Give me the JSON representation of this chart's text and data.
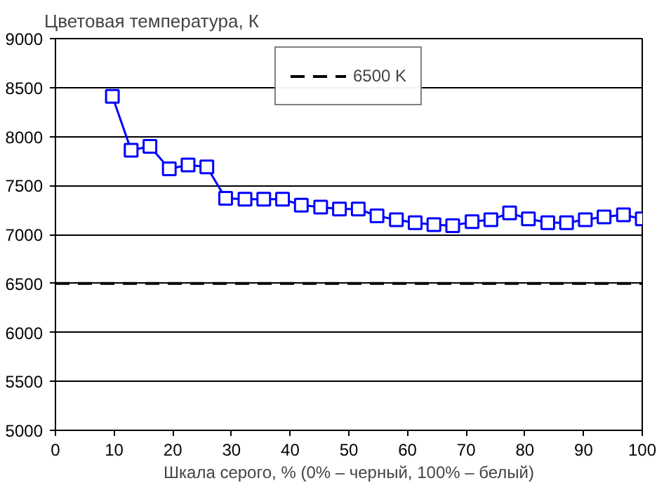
{
  "chart_data": {
    "type": "line",
    "ylabel": "Цветовая температура, К",
    "xlabel": "Шкала серого, % (0% – черный, 100% – белый)",
    "x": [
      9.7,
      12.9,
      16.1,
      19.4,
      22.6,
      25.8,
      29.0,
      32.3,
      35.5,
      38.7,
      41.9,
      45.2,
      48.4,
      51.6,
      54.8,
      58.1,
      61.3,
      64.5,
      67.7,
      71.0,
      74.2,
      77.4,
      80.6,
      83.9,
      87.1,
      90.3,
      93.5,
      96.8,
      100
    ],
    "series": [
      {
        "color": "#0000ff",
        "values": [
          8410,
          7860,
          7900,
          7670,
          7710,
          7690,
          7370,
          7360,
          7360,
          7360,
          7300,
          7280,
          7260,
          7260,
          7190,
          7150,
          7120,
          7100,
          7090,
          7130,
          7150,
          7220,
          7160,
          7120,
          7120,
          7150,
          7180,
          7200,
          7160
        ]
      }
    ],
    "ref_lines": [
      {
        "axis": "y",
        "value": 6500,
        "label": "6500 K",
        "color": "#000000",
        "line_style": "dashed"
      }
    ],
    "xlim": [
      0,
      100
    ],
    "xticks": [
      0,
      10,
      20,
      30,
      40,
      50,
      60,
      70,
      80,
      90,
      100
    ],
    "ylim": [
      5000,
      9000
    ],
    "yticks": [
      5000,
      5500,
      6000,
      6500,
      7000,
      7500,
      8000,
      8500,
      9000
    ],
    "grid": "y",
    "legend": "top",
    "marker": "square",
    "line_style": "solid"
  }
}
